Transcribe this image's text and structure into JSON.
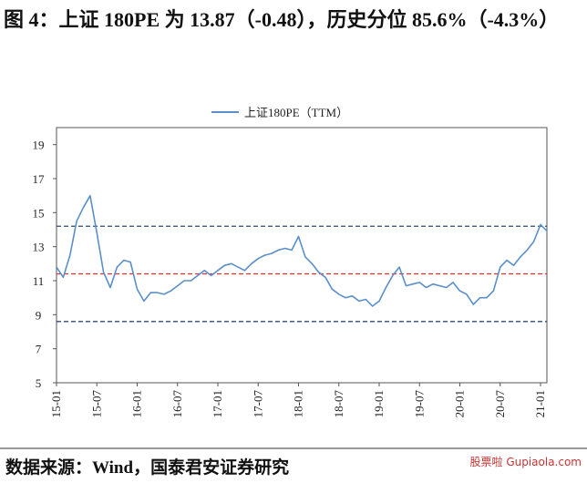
{
  "title": "图 4：上证 180PE 为 13.87（-0.48），历史分位 85.6%（-4.3%）",
  "chart_data": {
    "type": "line",
    "categories": [
      "15-01",
      "15-02",
      "15-03",
      "15-04",
      "15-05",
      "15-06",
      "15-07",
      "15-08",
      "15-09",
      "15-10",
      "15-11",
      "15-12",
      "16-01",
      "16-02",
      "16-03",
      "16-04",
      "16-05",
      "16-06",
      "16-07",
      "16-08",
      "16-09",
      "16-10",
      "16-11",
      "16-12",
      "17-01",
      "17-02",
      "17-03",
      "17-04",
      "17-05",
      "17-06",
      "17-07",
      "17-08",
      "17-09",
      "17-10",
      "17-11",
      "17-12",
      "18-01",
      "18-02",
      "18-03",
      "18-04",
      "18-05",
      "18-06",
      "18-07",
      "18-08",
      "18-09",
      "18-10",
      "18-11",
      "18-12",
      "19-01",
      "19-02",
      "19-03",
      "19-04",
      "19-05",
      "19-06",
      "19-07",
      "19-08",
      "19-09",
      "19-10",
      "19-11",
      "19-12",
      "20-01",
      "20-02",
      "20-03",
      "20-04",
      "20-05",
      "20-06",
      "20-07",
      "20-08",
      "20-09",
      "20-10",
      "20-11",
      "20-12",
      "21-01",
      "21-02"
    ],
    "series": [
      {
        "name": "上证180PE（TTM）",
        "color": "#5b8fc9",
        "values": [
          11.8,
          11.2,
          12.5,
          14.5,
          15.3,
          16.0,
          13.8,
          11.5,
          10.6,
          11.8,
          12.2,
          12.1,
          10.5,
          9.8,
          10.3,
          10.3,
          10.2,
          10.4,
          10.7,
          11.0,
          11.0,
          11.3,
          11.6,
          11.3,
          11.6,
          11.9,
          12.0,
          11.8,
          11.6,
          12.0,
          12.3,
          12.5,
          12.6,
          12.8,
          12.9,
          12.8,
          13.6,
          12.4,
          12.0,
          11.5,
          11.2,
          10.5,
          10.2,
          10.0,
          10.1,
          9.8,
          9.9,
          9.5,
          9.8,
          10.6,
          11.3,
          11.8,
          10.7,
          10.8,
          10.9,
          10.6,
          10.8,
          10.7,
          10.6,
          10.9,
          10.4,
          10.2,
          9.6,
          10.0,
          10.0,
          10.4,
          11.8,
          12.2,
          11.9,
          12.4,
          12.8,
          13.3,
          14.3,
          13.9
        ]
      }
    ],
    "reference_lines": [
      {
        "value": 14.2,
        "color": "#2f4a7a"
      },
      {
        "value": 11.4,
        "color": "#e03030"
      },
      {
        "value": 8.6,
        "color": "#2f4a7a"
      }
    ],
    "ylim": [
      5,
      20
    ],
    "yticks": [
      5,
      7,
      9,
      11,
      13,
      15,
      17,
      19
    ],
    "xticks": [
      "15-01",
      "15-07",
      "16-01",
      "16-07",
      "17-01",
      "17-07",
      "18-01",
      "18-07",
      "19-01",
      "19-07",
      "20-01",
      "20-07",
      "21-01"
    ],
    "legend": "top"
  },
  "footer": "数据来源：Wind，国泰君安证券研究",
  "watermark": "股票啦 Gupiaola.com"
}
